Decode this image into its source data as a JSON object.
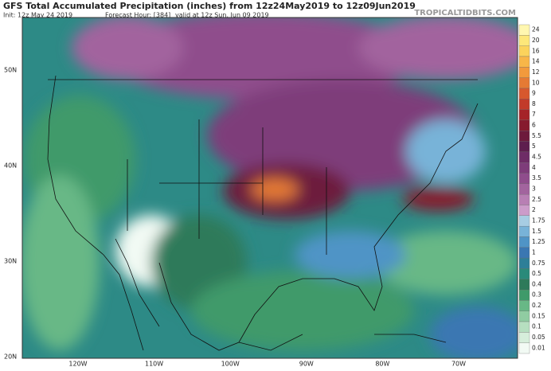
{
  "header": {
    "title": "GFS Total Accumulated Precipitation (inches) from 12z24May2019 to 12z09Jun2019",
    "init": "Init: 12z May 24 2019",
    "forecast_hour": "Forecast Hour: [384]",
    "valid": "valid at 12z Sun, Jun 09 2019",
    "site": "TROPICALTIDBITS.COM"
  },
  "map": {
    "lat_labels": [
      "50N",
      "40N",
      "30N",
      "20N"
    ],
    "lon_labels": [
      "120W",
      "110W",
      "100W",
      "90W",
      "80W",
      "70W"
    ]
  },
  "colorbar": [
    {
      "label": "24",
      "color": "#fff7b0"
    },
    {
      "label": "20",
      "color": "#fde77a"
    },
    {
      "label": "16",
      "color": "#fbd35c"
    },
    {
      "label": "14",
      "color": "#f8b648"
    },
    {
      "label": "12",
      "color": "#f29a3c"
    },
    {
      "label": "10",
      "color": "#e57a34"
    },
    {
      "label": "9",
      "color": "#d7582e"
    },
    {
      "label": "8",
      "color": "#c23a2a"
    },
    {
      "label": "7",
      "color": "#a52428"
    },
    {
      "label": "6",
      "color": "#861a2e"
    },
    {
      "label": "5.5",
      "color": "#6d1a3c"
    },
    {
      "label": "5",
      "color": "#5e1e4e"
    },
    {
      "label": "4.5",
      "color": "#6e2c66"
    },
    {
      "label": "4",
      "color": "#7e3c7a"
    },
    {
      "label": "3.5",
      "color": "#8f4d8c"
    },
    {
      "label": "3",
      "color": "#a2649e"
    },
    {
      "label": "2.5",
      "color": "#b87fb4"
    },
    {
      "label": "2",
      "color": "#cc9cca"
    },
    {
      "label": "1.75",
      "color": "#a7cde3"
    },
    {
      "label": "1.5",
      "color": "#78b3d8"
    },
    {
      "label": "1.25",
      "color": "#4f94c6"
    },
    {
      "label": "1",
      "color": "#3a77b2"
    },
    {
      "label": "0.75",
      "color": "#2d7f98"
    },
    {
      "label": "0.5",
      "color": "#2a8a7a"
    },
    {
      "label": "0.4",
      "color": "#2e7a5a"
    },
    {
      "label": "0.3",
      "color": "#3f9a6a"
    },
    {
      "label": "0.2",
      "color": "#68b886"
    },
    {
      "label": "0.15",
      "color": "#90cca2"
    },
    {
      "label": "0.1",
      "color": "#b6dfc0"
    },
    {
      "label": "0.05",
      "color": "#d6eedb"
    },
    {
      "label": "0.01",
      "color": "#f2faf4"
    }
  ]
}
